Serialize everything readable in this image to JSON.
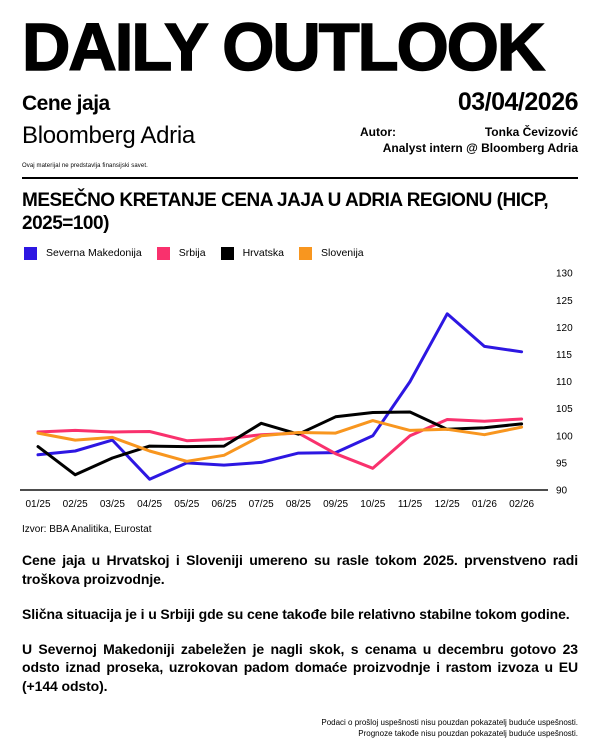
{
  "header": {
    "masthead": "DAILY OUTLOOK",
    "subject": "Cene jaja",
    "date": "03/04/2026",
    "brand": "Bloomberg Adria",
    "author_label": "Autor:",
    "author_name": "Tonka Čevizović",
    "author_role": "Analyst intern @ Bloomberg Adria",
    "disclaimer": "Ovaj materijal ne predstavlja finansijski savet."
  },
  "chart_data": {
    "type": "line",
    "title": "MESEČNO KRETANJE CENA JAJA U ADRIA REGIONU (HICP, 2025=100)",
    "categories": [
      "01/25",
      "02/25",
      "03/25",
      "04/25",
      "05/25",
      "06/25",
      "07/25",
      "08/25",
      "09/25",
      "10/25",
      "11/25",
      "12/25",
      "01/26",
      "02/26"
    ],
    "series": [
      {
        "name": "Severna Makedonija",
        "color": "#2d17e2",
        "values": [
          96.5,
          97.2,
          99.2,
          92.0,
          95.0,
          94.6,
          95.1,
          96.8,
          96.9,
          100.0,
          110.0,
          122.5,
          116.5,
          115.5
        ]
      },
      {
        "name": "Srbija",
        "color": "#f9316d",
        "values": [
          100.7,
          101.0,
          100.7,
          100.8,
          99.1,
          99.4,
          100.2,
          100.5,
          96.7,
          94.0,
          100.0,
          103.0,
          102.7,
          103.1
        ]
      },
      {
        "name": "Hrvatska",
        "color": "#000000",
        "values": [
          98.0,
          92.8,
          95.9,
          98.1,
          98.0,
          98.1,
          102.3,
          100.3,
          103.5,
          104.3,
          104.4,
          101.2,
          101.5,
          102.2
        ]
      },
      {
        "name": "Slovenija",
        "color": "#f8961f",
        "values": [
          100.5,
          99.2,
          99.7,
          97.2,
          95.3,
          96.4,
          100.0,
          100.6,
          100.5,
          102.8,
          101.0,
          101.2,
          100.2,
          101.6
        ]
      }
    ],
    "ylim": [
      90,
      130
    ],
    "ytick_step": 5,
    "legend_position": "top",
    "grid": false,
    "axis_color": "#4d4d4d"
  },
  "source": "Izvor: BBA Analitika, Eurostat",
  "paragraphs": [
    "Cene jaja u Hrvatskoj i Sloveniji umereno su rasle tokom 2025. prvenstveno radi troškova proizvodnje.",
    "Slična situacija je i u Srbiji gde su cene takođe bile relativno stabilne tokom godine.",
    "U Severnoj Makedoniji zabeležen je nagli skok, s cenama u decembru gotovo 23 odsto iznad proseka, uzrokovan padom domaće proizvodnje i rastom izvoza u EU (+144 odsto)."
  ],
  "footer": {
    "line1": "Podaci o prošloj uspešnosti nisu pouzdan pokazatelj buduće uspešnosti.",
    "line2": "Prognoze takođe nisu pouzdan pokazatelj buduće uspešnosti."
  }
}
